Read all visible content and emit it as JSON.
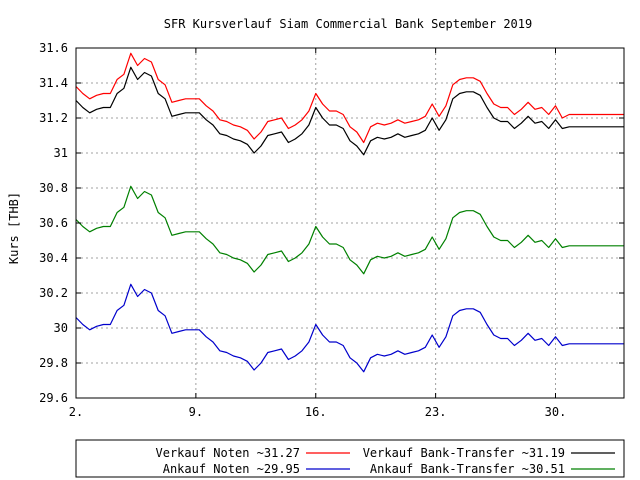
{
  "chart_data": {
    "type": "line",
    "title": "SFR Kursverlauf Siam Commercial Bank September 2019",
    "ylabel": "Kurs [THB]",
    "xlabel": "",
    "ylim": [
      29.6,
      31.6
    ],
    "xlim": [
      2,
      34
    ],
    "yticks": [
      "29.6",
      "29.8",
      "30",
      "30.2",
      "30.4",
      "30.6",
      "30.8",
      "31",
      "31.2",
      "31.4",
      "31.6"
    ],
    "xticks": [
      {
        "value": 2,
        "label": "2."
      },
      {
        "value": 9,
        "label": "9."
      },
      {
        "value": 16,
        "label": "16."
      },
      {
        "value": 23,
        "label": "23."
      },
      {
        "value": 30,
        "label": "30."
      }
    ],
    "grid": true,
    "legend_position": "bottom",
    "series": [
      {
        "name": "Verkauf Noten",
        "legend_label": "Verkauf Noten ~31.27",
        "color": "#ff0000",
        "x": [
          2.0,
          2.4,
          2.8,
          3.2,
          3.6,
          4.0,
          4.4,
          4.8,
          5.2,
          5.6,
          6.0,
          6.4,
          6.8,
          7.2,
          7.6,
          8.0,
          8.4,
          8.8,
          9.2,
          9.6,
          10.0,
          10.4,
          10.8,
          11.2,
          11.6,
          12.0,
          12.4,
          12.8,
          13.2,
          13.6,
          14.0,
          14.4,
          14.8,
          15.2,
          15.6,
          16.0,
          16.4,
          16.8,
          17.2,
          17.6,
          18.0,
          18.4,
          18.8,
          19.2,
          19.6,
          20.0,
          20.4,
          20.8,
          21.2,
          21.6,
          22.0,
          22.4,
          22.8,
          23.2,
          23.6,
          24.0,
          24.4,
          24.8,
          25.2,
          25.6,
          26.0,
          26.4,
          26.8,
          27.2,
          27.6,
          28.0,
          28.4,
          28.8,
          29.2,
          29.6,
          30.0,
          30.4,
          30.8,
          31.2,
          31.6,
          32.0,
          32.4,
          32.8,
          33.2,
          33.6,
          34.0
        ],
        "values": [
          31.38,
          31.34,
          31.31,
          31.33,
          31.34,
          31.34,
          31.42,
          31.45,
          31.57,
          31.5,
          31.54,
          31.52,
          31.42,
          31.39,
          31.29,
          31.3,
          31.31,
          31.31,
          31.31,
          31.27,
          31.24,
          31.19,
          31.18,
          31.16,
          31.15,
          31.13,
          31.08,
          31.12,
          31.18,
          31.19,
          31.2,
          31.14,
          31.16,
          31.19,
          31.24,
          31.34,
          31.28,
          31.24,
          31.24,
          31.22,
          31.15,
          31.12,
          31.06,
          31.15,
          31.17,
          31.16,
          31.17,
          31.19,
          31.17,
          31.18,
          31.19,
          31.21,
          31.28,
          31.21,
          31.27,
          31.39,
          31.42,
          31.43,
          31.43,
          31.41,
          31.34,
          31.28,
          31.26,
          31.26,
          31.22,
          31.25,
          31.29,
          31.25,
          31.26,
          31.22,
          31.27,
          31.2,
          31.22,
          31.22,
          31.22,
          31.22,
          31.22,
          31.22,
          31.22,
          31.22,
          31.22
        ]
      },
      {
        "name": "Verkauf Bank-Transfer",
        "legend_label": "Verkauf Bank-Transfer ~31.19",
        "color": "#000000",
        "x": [
          2.0,
          2.4,
          2.8,
          3.2,
          3.6,
          4.0,
          4.4,
          4.8,
          5.2,
          5.6,
          6.0,
          6.4,
          6.8,
          7.2,
          7.6,
          8.0,
          8.4,
          8.8,
          9.2,
          9.6,
          10.0,
          10.4,
          10.8,
          11.2,
          11.6,
          12.0,
          12.4,
          12.8,
          13.2,
          13.6,
          14.0,
          14.4,
          14.8,
          15.2,
          15.6,
          16.0,
          16.4,
          16.8,
          17.2,
          17.6,
          18.0,
          18.4,
          18.8,
          19.2,
          19.6,
          20.0,
          20.4,
          20.8,
          21.2,
          21.6,
          22.0,
          22.4,
          22.8,
          23.2,
          23.6,
          24.0,
          24.4,
          24.8,
          25.2,
          25.6,
          26.0,
          26.4,
          26.8,
          27.2,
          27.6,
          28.0,
          28.4,
          28.8,
          29.2,
          29.6,
          30.0,
          30.4,
          30.8,
          31.2,
          31.6,
          32.0,
          32.4,
          32.8,
          33.2,
          33.6,
          34.0
        ],
        "values": [
          31.3,
          31.26,
          31.23,
          31.25,
          31.26,
          31.26,
          31.34,
          31.37,
          31.49,
          31.42,
          31.46,
          31.44,
          31.34,
          31.31,
          31.21,
          31.22,
          31.23,
          31.23,
          31.23,
          31.19,
          31.16,
          31.11,
          31.1,
          31.08,
          31.07,
          31.05,
          31.0,
          31.04,
          31.1,
          31.11,
          31.12,
          31.06,
          31.08,
          31.11,
          31.16,
          31.26,
          31.2,
          31.16,
          31.16,
          31.14,
          31.07,
          31.04,
          30.99,
          31.07,
          31.09,
          31.08,
          31.09,
          31.11,
          31.09,
          31.1,
          31.11,
          31.13,
          31.2,
          31.13,
          31.19,
          31.31,
          31.34,
          31.35,
          31.35,
          31.33,
          31.26,
          31.2,
          31.18,
          31.18,
          31.14,
          31.17,
          31.21,
          31.17,
          31.18,
          31.14,
          31.19,
          31.14,
          31.15,
          31.15,
          31.15,
          31.15,
          31.15,
          31.15,
          31.15,
          31.15,
          31.15
        ]
      },
      {
        "name": "Ankauf Noten",
        "legend_label": "Ankauf Noten ~29.95",
        "color": "#0000cc",
        "x": [
          2.0,
          2.4,
          2.8,
          3.2,
          3.6,
          4.0,
          4.4,
          4.8,
          5.2,
          5.6,
          6.0,
          6.4,
          6.8,
          7.2,
          7.6,
          8.0,
          8.4,
          8.8,
          9.2,
          9.6,
          10.0,
          10.4,
          10.8,
          11.2,
          11.6,
          12.0,
          12.4,
          12.8,
          13.2,
          13.6,
          14.0,
          14.4,
          14.8,
          15.2,
          15.6,
          16.0,
          16.4,
          16.8,
          17.2,
          17.6,
          18.0,
          18.4,
          18.8,
          19.2,
          19.6,
          20.0,
          20.4,
          20.8,
          21.2,
          21.6,
          22.0,
          22.4,
          22.8,
          23.2,
          23.6,
          24.0,
          24.4,
          24.8,
          25.2,
          25.6,
          26.0,
          26.4,
          26.8,
          27.2,
          27.6,
          28.0,
          28.4,
          28.8,
          29.2,
          29.6,
          30.0,
          30.4,
          30.8,
          31.2,
          31.6,
          32.0,
          32.4,
          32.8,
          33.2,
          33.6,
          34.0
        ],
        "values": [
          30.06,
          30.02,
          29.99,
          30.01,
          30.02,
          30.02,
          30.1,
          30.13,
          30.25,
          30.18,
          30.22,
          30.2,
          30.1,
          30.07,
          29.97,
          29.98,
          29.99,
          29.99,
          29.99,
          29.95,
          29.92,
          29.87,
          29.86,
          29.84,
          29.83,
          29.81,
          29.76,
          29.8,
          29.86,
          29.87,
          29.88,
          29.82,
          29.84,
          29.87,
          29.92,
          30.02,
          29.96,
          29.92,
          29.92,
          29.9,
          29.83,
          29.8,
          29.75,
          29.83,
          29.85,
          29.84,
          29.85,
          29.87,
          29.85,
          29.86,
          29.87,
          29.89,
          29.96,
          29.89,
          29.95,
          30.07,
          30.1,
          30.11,
          30.11,
          30.09,
          30.02,
          29.96,
          29.94,
          29.94,
          29.9,
          29.93,
          29.97,
          29.93,
          29.94,
          29.9,
          29.95,
          29.9,
          29.91,
          29.91,
          29.91,
          29.91,
          29.91,
          29.91,
          29.91,
          29.91,
          29.91
        ]
      },
      {
        "name": "Ankauf Bank-Transfer",
        "legend_label": "Ankauf Bank-Transfer ~30.51",
        "color": "#008000",
        "x": [
          2.0,
          2.4,
          2.8,
          3.2,
          3.6,
          4.0,
          4.4,
          4.8,
          5.2,
          5.6,
          6.0,
          6.4,
          6.8,
          7.2,
          7.6,
          8.0,
          8.4,
          8.8,
          9.2,
          9.6,
          10.0,
          10.4,
          10.8,
          11.2,
          11.6,
          12.0,
          12.4,
          12.8,
          13.2,
          13.6,
          14.0,
          14.4,
          14.8,
          15.2,
          15.6,
          16.0,
          16.4,
          16.8,
          17.2,
          17.6,
          18.0,
          18.4,
          18.8,
          19.2,
          19.6,
          20.0,
          20.4,
          20.8,
          21.2,
          21.6,
          22.0,
          22.4,
          22.8,
          23.2,
          23.6,
          24.0,
          24.4,
          24.8,
          25.2,
          25.6,
          26.0,
          26.4,
          26.8,
          27.2,
          27.6,
          28.0,
          28.4,
          28.8,
          29.2,
          29.6,
          30.0,
          30.4,
          30.8,
          31.2,
          31.6,
          32.0,
          32.4,
          32.8,
          33.2,
          33.6,
          34.0
        ],
        "values": [
          30.62,
          30.58,
          30.55,
          30.57,
          30.58,
          30.58,
          30.66,
          30.69,
          30.81,
          30.74,
          30.78,
          30.76,
          30.66,
          30.63,
          30.53,
          30.54,
          30.55,
          30.55,
          30.55,
          30.51,
          30.48,
          30.43,
          30.42,
          30.4,
          30.39,
          30.37,
          30.32,
          30.36,
          30.42,
          30.43,
          30.44,
          30.38,
          30.4,
          30.43,
          30.48,
          30.58,
          30.52,
          30.48,
          30.48,
          30.46,
          30.39,
          30.36,
          30.31,
          30.39,
          30.41,
          30.4,
          30.41,
          30.43,
          30.41,
          30.42,
          30.43,
          30.45,
          30.52,
          30.45,
          30.51,
          30.63,
          30.66,
          30.67,
          30.67,
          30.65,
          30.58,
          30.52,
          30.5,
          30.5,
          30.46,
          30.49,
          30.53,
          30.49,
          30.5,
          30.46,
          30.51,
          30.46,
          30.47,
          30.47,
          30.47,
          30.47,
          30.47,
          30.47,
          30.47,
          30.47,
          30.47
        ]
      }
    ]
  }
}
